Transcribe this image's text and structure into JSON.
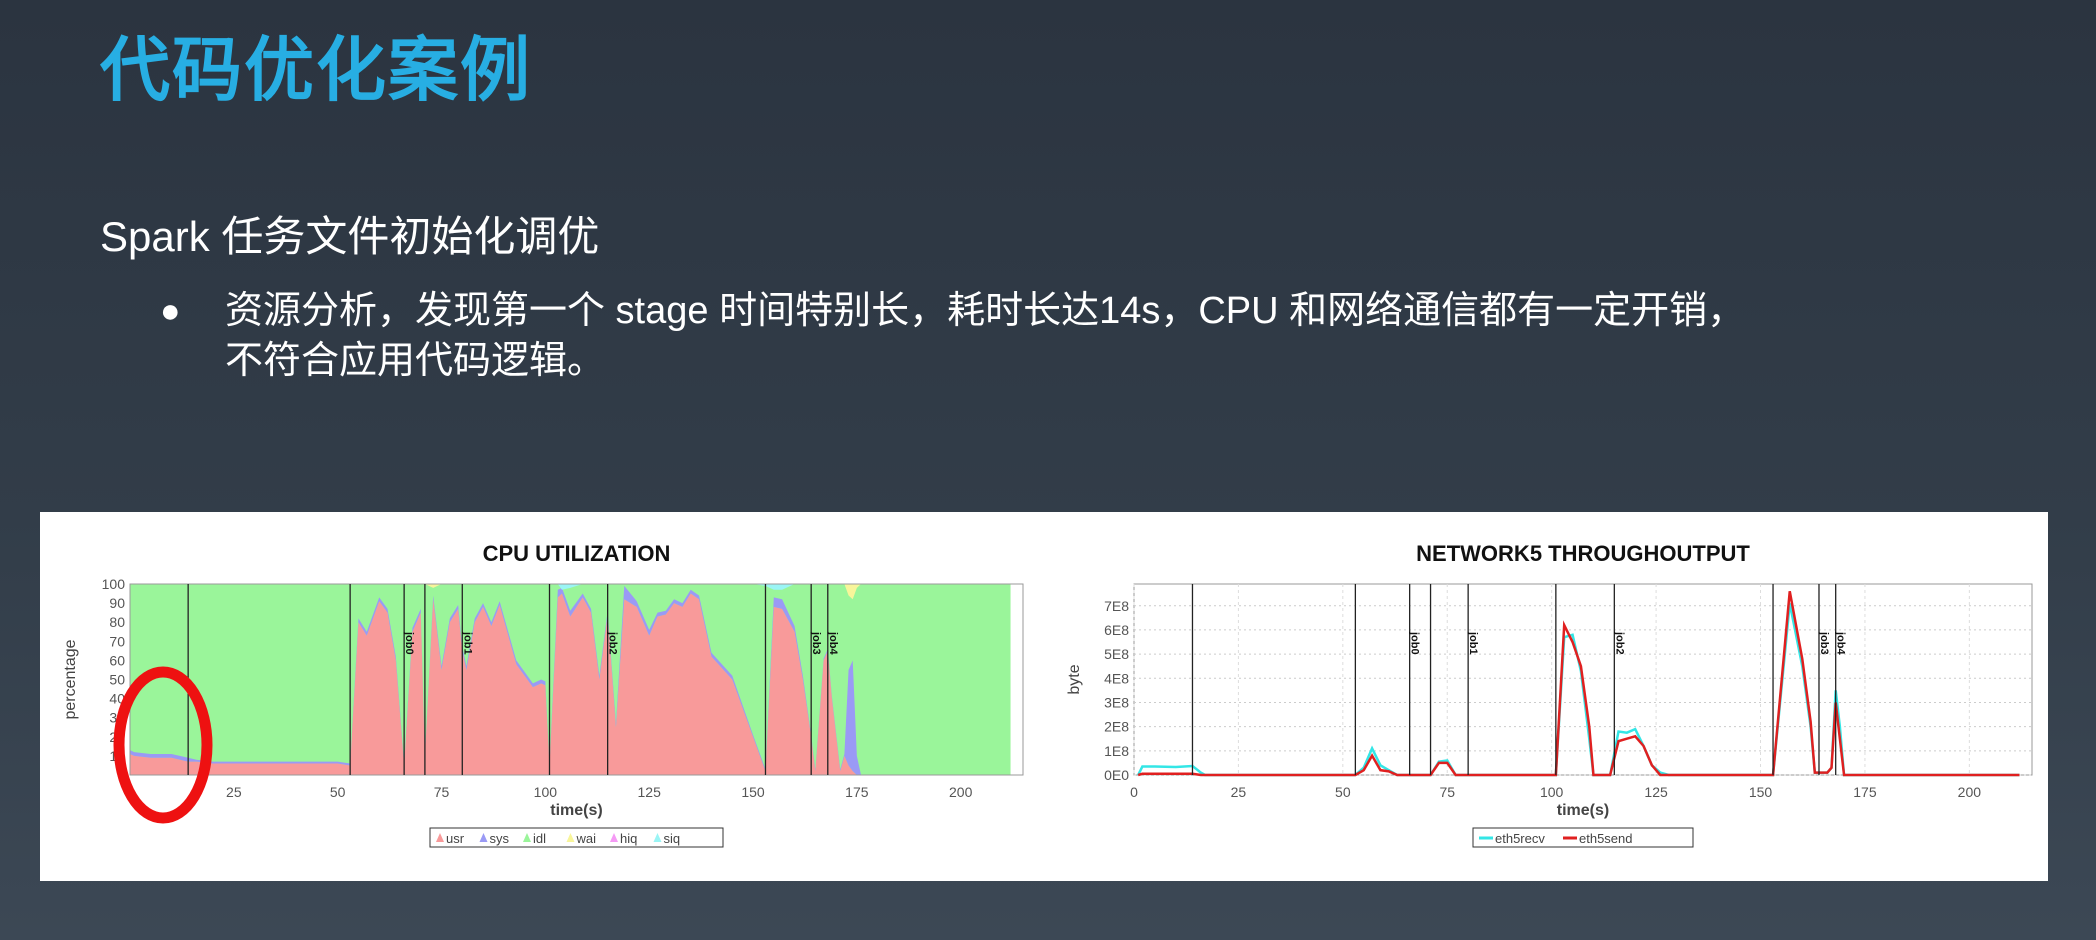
{
  "slide": {
    "title": "代码优化案例",
    "subtitle": "Spark 任务文件初始化调优",
    "bullet_icon": "bullet-dot",
    "bullet_line1": "资源分析，发现第一个 stage 时间特别长，耗时长达14s，CPU 和网络通信都有一定开销，",
    "bullet_line2": "不符合应用代码逻辑。",
    "title_color": "#27aee3",
    "annotation": "red-ellipse-highlight"
  },
  "chart_data": [
    {
      "type": "area",
      "stacked": true,
      "title": "CPU UTILIZATION",
      "xlabel": "time(s)",
      "ylabel": "percentage",
      "xlim": [
        0,
        215
      ],
      "ylim": [
        0,
        100
      ],
      "xticks": [
        "25",
        "50",
        "75",
        "100",
        "125",
        "150",
        "175",
        "200"
      ],
      "yticks": [
        "0",
        "10",
        "20",
        "30",
        "40",
        "50",
        "60",
        "70",
        "80",
        "90",
        "100"
      ],
      "legend": {
        "placement": "bottom",
        "entries": [
          "usr",
          "sys",
          "idl",
          "wai",
          "hiq",
          "siq"
        ]
      },
      "colors": {
        "usr": "#f89a9a",
        "sys": "#9a9af5",
        "idl": "#9af59a",
        "wai": "#f8f59a",
        "hiq": "#f59af5",
        "siq": "#9af5f5"
      },
      "job_markers": [
        {
          "x": 14,
          "label": ""
        },
        {
          "x": 53,
          "label": ""
        },
        {
          "x": 66,
          "label": "job0"
        },
        {
          "x": 71,
          "label": ""
        },
        {
          "x": 80,
          "label": "job1"
        },
        {
          "x": 101,
          "label": ""
        },
        {
          "x": 115,
          "label": "job2"
        },
        {
          "x": 153,
          "label": ""
        },
        {
          "x": 164,
          "label": "job3"
        },
        {
          "x": 168,
          "label": "job4"
        }
      ],
      "x": [
        0,
        1,
        5,
        10,
        14,
        16,
        20,
        25,
        30,
        40,
        50,
        53,
        55,
        57,
        60,
        62,
        64,
        66,
        68,
        70,
        71,
        73,
        75,
        77,
        79,
        80,
        81,
        83,
        85,
        87,
        89,
        93,
        97,
        99,
        100,
        101,
        103,
        104,
        106,
        109,
        111,
        113,
        115,
        117,
        119,
        122,
        125,
        127,
        129,
        131,
        133,
        135,
        137,
        140,
        145,
        150,
        153,
        155,
        157,
        160,
        162,
        164,
        165,
        167,
        168,
        169,
        171,
        172,
        173,
        174,
        175,
        176,
        180,
        212
      ],
      "series": [
        {
          "name": "usr",
          "values": [
            11,
            10,
            9,
            9,
            7,
            7,
            6,
            6,
            6,
            6,
            6,
            5,
            80,
            73,
            91,
            85,
            60,
            5,
            75,
            85,
            10,
            92,
            55,
            80,
            87,
            65,
            55,
            80,
            88,
            78,
            89,
            58,
            46,
            48,
            47,
            5,
            93,
            95,
            83,
            93,
            85,
            50,
            84,
            25,
            92,
            88,
            73,
            83,
            84,
            90,
            88,
            95,
            92,
            62,
            50,
            20,
            2,
            88,
            87,
            75,
            50,
            20,
            2,
            60,
            65,
            40,
            2,
            10,
            5,
            2,
            0,
            0,
            0,
            0
          ]
        },
        {
          "name": "sys",
          "values": [
            2,
            2,
            2,
            2,
            2,
            1,
            1,
            1,
            1,
            1,
            1,
            1,
            2,
            2,
            2,
            2,
            2,
            1,
            2,
            2,
            1,
            2,
            2,
            2,
            2,
            2,
            2,
            2,
            2,
            2,
            2,
            2,
            2,
            2,
            2,
            1,
            4,
            3,
            3,
            2,
            2,
            2,
            2,
            2,
            7,
            3,
            3,
            2,
            2,
            2,
            2,
            2,
            2,
            2,
            2,
            1,
            1,
            5,
            5,
            3,
            2,
            1,
            1,
            1,
            1,
            1,
            1,
            1,
            50,
            58,
            10,
            0,
            0,
            0
          ]
        },
        {
          "name": "wai",
          "values": [
            0,
            0,
            0,
            0,
            0,
            0,
            0,
            0,
            0,
            0,
            0,
            0,
            0,
            0,
            0,
            0,
            0,
            0,
            0,
            0,
            0,
            2,
            0,
            0,
            0,
            0,
            0,
            0,
            0,
            0,
            0,
            0,
            0,
            0,
            0,
            0,
            0,
            0,
            0,
            0,
            0,
            0,
            0,
            0,
            0,
            0,
            0,
            0,
            0,
            0,
            0,
            0,
            0,
            0,
            0,
            0,
            0,
            0,
            0,
            0,
            0,
            0,
            0,
            0,
            0,
            0,
            0,
            0,
            6,
            8,
            2,
            0,
            0,
            0
          ]
        },
        {
          "name": "siq",
          "values": [
            0,
            0,
            0,
            0,
            0,
            0,
            0,
            0,
            0,
            0,
            0,
            0,
            0,
            0,
            0,
            0,
            0,
            0,
            0,
            0,
            0,
            0,
            0,
            0,
            0,
            0,
            0,
            0,
            0,
            0,
            0,
            0,
            0,
            0,
            0,
            0,
            0,
            3,
            2,
            0,
            0,
            0,
            0,
            0,
            0,
            0,
            0,
            0,
            0,
            0,
            0,
            0,
            0,
            0,
            0,
            0,
            1,
            3,
            3,
            0,
            0,
            0,
            0,
            0,
            0,
            0,
            0,
            0,
            0,
            0,
            0,
            0,
            0,
            0
          ]
        }
      ]
    },
    {
      "type": "line",
      "title": "NETWORK5 THROUGHOUTPUT",
      "xlabel": "time(s)",
      "ylabel": "byte",
      "xlim": [
        0,
        215
      ],
      "ylim": [
        0,
        790000000
      ],
      "grid": true,
      "xticks": [
        "0",
        "25",
        "50",
        "75",
        "100",
        "125",
        "150",
        "175",
        "200"
      ],
      "yticks": [
        "0E0",
        "1E8",
        "2E8",
        "3E8",
        "4E8",
        "5E8",
        "6E8",
        "7E8"
      ],
      "legend": {
        "placement": "bottom",
        "entries": [
          "eth5recv",
          "eth5send"
        ]
      },
      "colors": {
        "eth5recv": "#33e6e6",
        "eth5send": "#e02020"
      },
      "job_markers": [
        {
          "x": 14,
          "label": ""
        },
        {
          "x": 53,
          "label": ""
        },
        {
          "x": 66,
          "label": "job0"
        },
        {
          "x": 71,
          "label": ""
        },
        {
          "x": 80,
          "label": "job1"
        },
        {
          "x": 101,
          "label": ""
        },
        {
          "x": 115,
          "label": "job2"
        },
        {
          "x": 153,
          "label": ""
        },
        {
          "x": 164,
          "label": "job3"
        },
        {
          "x": 168,
          "label": "job4"
        }
      ],
      "x": [
        1,
        2,
        5,
        10,
        14,
        16,
        17,
        53,
        55,
        57,
        59,
        61,
        63,
        71,
        73,
        75,
        77,
        101,
        103,
        105,
        107,
        109,
        110,
        114,
        116,
        118,
        120,
        122,
        124,
        126,
        128,
        153,
        157,
        160,
        162,
        163,
        166,
        167,
        168,
        169,
        170,
        212
      ],
      "series": [
        {
          "name": "eth5recv",
          "values": [
            0,
            35000000,
            35000000,
            33000000,
            37000000,
            10000000,
            0,
            0,
            30000000,
            110000000,
            40000000,
            20000000,
            0,
            0,
            55000000,
            60000000,
            0,
            0,
            570000000,
            580000000,
            430000000,
            150000000,
            0,
            0,
            180000000,
            175000000,
            190000000,
            120000000,
            40000000,
            10000000,
            0,
            0,
            710000000,
            450000000,
            200000000,
            10000000,
            10000000,
            30000000,
            350000000,
            200000000,
            0,
            0
          ]
        },
        {
          "name": "eth5send",
          "values": [
            0,
            5000000,
            5000000,
            5000000,
            5000000,
            0,
            0,
            0,
            20000000,
            80000000,
            20000000,
            15000000,
            0,
            0,
            50000000,
            50000000,
            0,
            0,
            620000000,
            550000000,
            450000000,
            200000000,
            0,
            0,
            140000000,
            150000000,
            160000000,
            120000000,
            40000000,
            0,
            0,
            0,
            760000000,
            480000000,
            220000000,
            10000000,
            10000000,
            30000000,
            300000000,
            150000000,
            0,
            0
          ]
        }
      ]
    }
  ]
}
